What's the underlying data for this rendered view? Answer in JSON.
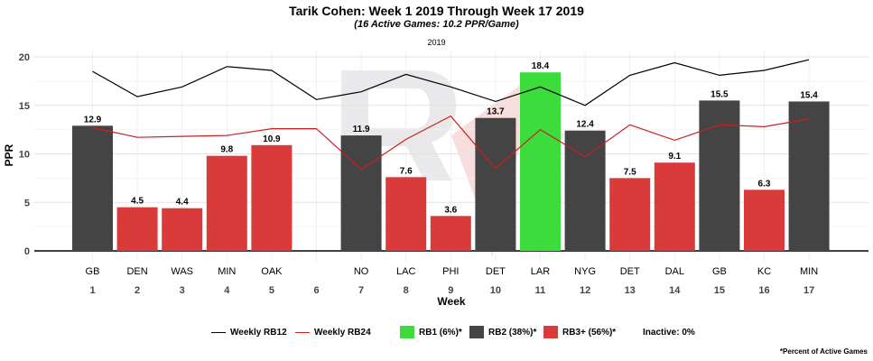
{
  "chart_data": {
    "type": "bar",
    "title": "Tarik Cohen: Week 1 2019 Through Week 17 2019",
    "subtitle": "(16 Active Games: 10.2 PPR/Game)",
    "season_label": "2019",
    "xlabel": "Week",
    "ylabel": "PPR",
    "ylim": [
      0,
      20
    ],
    "y_ticks": [
      0,
      5,
      10,
      15,
      20
    ],
    "grid": true,
    "weeks": [
      "1",
      "2",
      "3",
      "4",
      "5",
      "6",
      "7",
      "8",
      "9",
      "10",
      "11",
      "12",
      "13",
      "14",
      "15",
      "16",
      "17"
    ],
    "opponents": [
      "GB",
      "DEN",
      "WAS",
      "MIN",
      "OAK",
      "",
      "NO",
      "LAC",
      "PHI",
      "DET",
      "LAR",
      "NYG",
      "DET",
      "DAL",
      "GB",
      "KC",
      "MIN"
    ],
    "values": [
      12.9,
      4.5,
      4.4,
      9.8,
      10.9,
      null,
      11.9,
      7.6,
      3.6,
      13.7,
      18.4,
      12.4,
      7.5,
      9.1,
      15.5,
      6.3,
      15.4
    ],
    "value_labels": [
      "12.9",
      "4.5",
      "4.4",
      "9.8",
      "10.9",
      "",
      "11.9",
      "7.6",
      "3.6",
      "13.7",
      "18.4",
      "12.4",
      "7.5",
      "9.1",
      "15.5",
      "6.3",
      "15.4"
    ],
    "tiers": [
      "RB2",
      "RB3+",
      "RB3+",
      "RB3+",
      "RB3+",
      null,
      "RB2",
      "RB3+",
      "RB3+",
      "RB2",
      "RB1",
      "RB2",
      "RB3+",
      "RB3+",
      "RB2",
      "RB3+",
      "RB2"
    ],
    "series": [
      {
        "name": "Weekly RB12",
        "values": [
          18.5,
          15.9,
          16.9,
          19.0,
          18.6,
          15.6,
          16.4,
          18.2,
          16.9,
          15.4,
          16.9,
          15.0,
          18.1,
          19.4,
          18.1,
          18.6,
          19.7
        ]
      },
      {
        "name": "Weekly RB24",
        "values": [
          12.7,
          11.7,
          11.8,
          11.9,
          12.6,
          12.6,
          8.4,
          11.5,
          13.9,
          8.5,
          12.5,
          9.7,
          13.0,
          11.4,
          13.0,
          12.8,
          13.6
        ]
      }
    ],
    "legend": {
      "placement": "bottom",
      "items": [
        {
          "label": "Weekly RB12",
          "kind": "line",
          "color": "#000000"
        },
        {
          "label": "Weekly RB24",
          "kind": "line",
          "color": "#cc1f1f"
        },
        {
          "label": "RB1 (6%)*",
          "kind": "box",
          "color": "#3ddc3d"
        },
        {
          "label": "RB2 (38%)*",
          "kind": "box",
          "color": "#444444"
        },
        {
          "label": "RB3+ (56%)*",
          "kind": "box",
          "color": "#d93b3b"
        },
        {
          "label": "Inactive: 0%",
          "kind": "text",
          "color": ""
        }
      ]
    },
    "colors": {
      "RB1": "#3ddc3d",
      "RB2": "#444444",
      "RB3+": "#d93b3b",
      "rb12_line": "#000000",
      "rb24_line": "#cc1f1f"
    },
    "footnote": "*Percent of Active Games"
  }
}
